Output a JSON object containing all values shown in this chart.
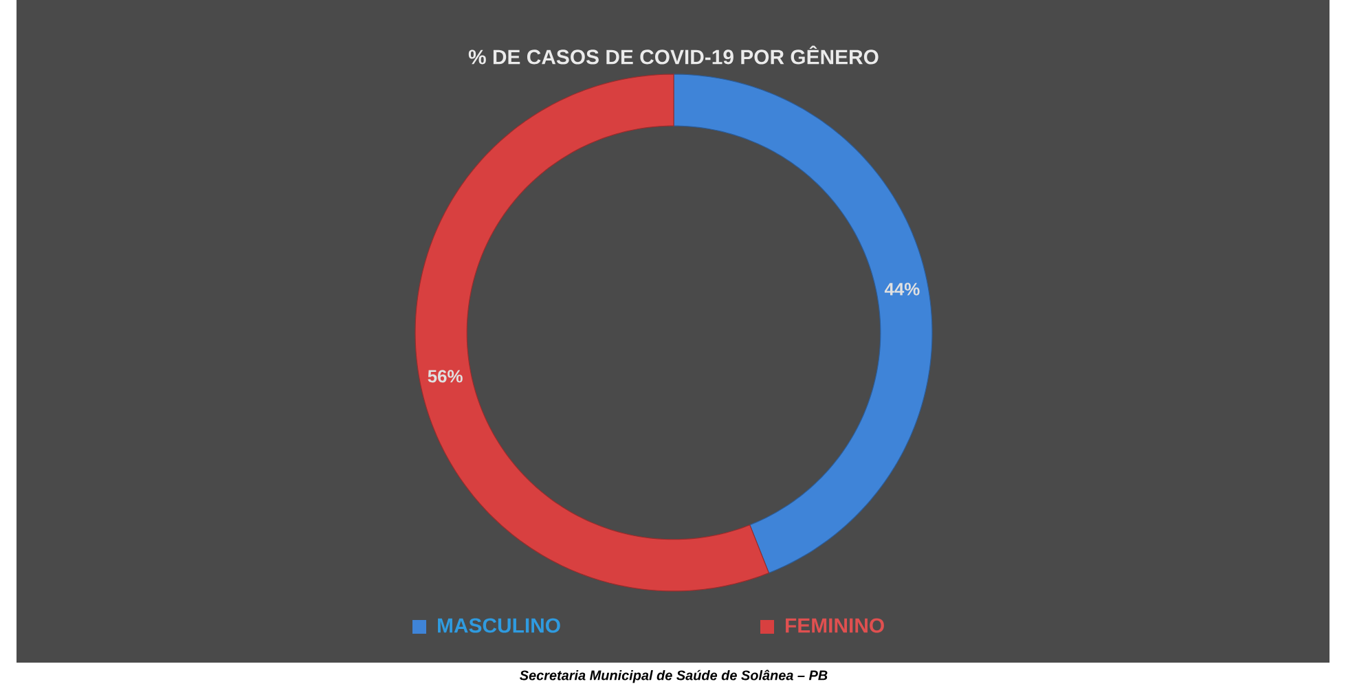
{
  "chart_data": {
    "type": "donut",
    "title": "% DE CASOS DE COVID-19 POR GÊNERO",
    "categories": [
      "MASCULINO",
      "FEMININO"
    ],
    "values": [
      44,
      56
    ],
    "colors": [
      "#3f84d8",
      "#d84040"
    ],
    "value_labels": [
      "44%",
      "56%"
    ],
    "legend": "bottom",
    "annotations": [
      "*Secretaria Municipal de Saúde de Solânea – PB*"
    ]
  }
}
